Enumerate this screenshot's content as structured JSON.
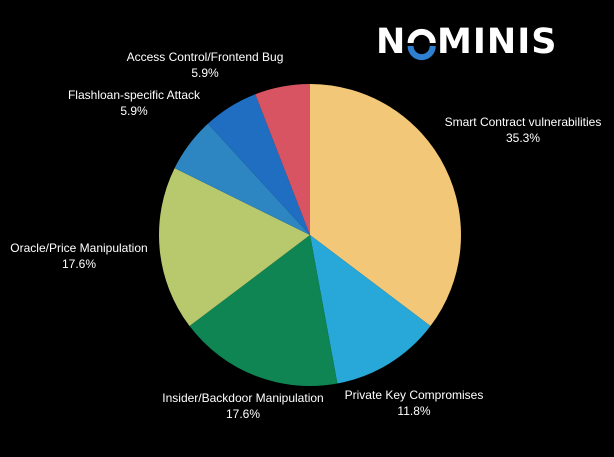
{
  "brand": {
    "name": "NOMINIS",
    "color": "#ffffff",
    "accent": "#2f7fd1"
  },
  "chart_data": {
    "type": "pie",
    "title": "",
    "start_angle_deg": 0,
    "direction": "clockwise",
    "slices": [
      {
        "label": "Smart Contract vulnerabilities",
        "value": 35.3,
        "value_label": "35.3%",
        "color": "#f2c777"
      },
      {
        "label": "Private Key Compromises",
        "value": 11.8,
        "value_label": "11.8%",
        "color": "#27a8d8"
      },
      {
        "label": "Insider/Backdoor Manipulation",
        "value": 17.6,
        "value_label": "17.6%",
        "color": "#0e8553"
      },
      {
        "label": "Oracle/Price Manipulation",
        "value": 17.6,
        "value_label": "17.6%",
        "color": "#b8c96d"
      },
      {
        "label": "Flashloan-specific Attack",
        "value": 5.9,
        "value_label": "5.9%",
        "color": "#2d86c2"
      },
      {
        "label": "Access Control/Frontend Bug",
        "value": 5.9,
        "value_label": "5.9%",
        "color": "#1f6ec1"
      },
      {
        "label": "",
        "value": 5.9,
        "value_label": "",
        "color": "#d85463"
      }
    ]
  }
}
